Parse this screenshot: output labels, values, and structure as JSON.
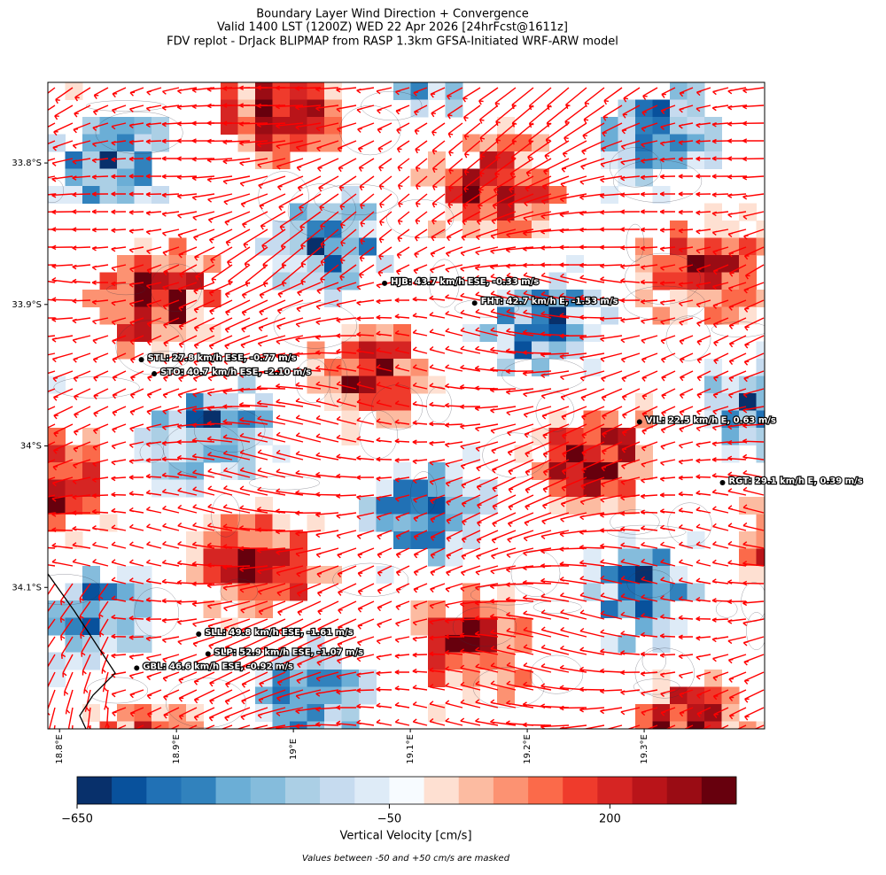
{
  "header": {
    "title_lines": [
      "Boundary Layer Wind Direction + Convergence",
      "Valid 1400 LST (1200Z) WED 22 Apr 2026 [24hrFcst@1611z]",
      "FDV replot - DrJack BLIPMAP from RASP 1.3km GFSA-Initiated WRF-ARW model"
    ]
  },
  "map": {
    "xlim": [
      18.79,
      19.403
    ],
    "ylim": [
      -34.2,
      -33.743
    ],
    "xticks": [
      {
        "value": 18.8,
        "label": "18.8°E"
      },
      {
        "value": 18.9,
        "label": "18.9°E"
      },
      {
        "value": 19.0,
        "label": "19°E"
      },
      {
        "value": 19.1,
        "label": "19.1°E"
      },
      {
        "value": 19.2,
        "label": "19.2°E"
      },
      {
        "value": 19.3,
        "label": "19.3°E"
      }
    ],
    "yticks": [
      {
        "value": -33.8,
        "label": "33.8°S"
      },
      {
        "value": -33.9,
        "label": "33.9°S"
      },
      {
        "value": -34.0,
        "label": "34°S"
      },
      {
        "value": -34.1,
        "label": "34.1°S"
      }
    ],
    "stations": [
      {
        "label": "HJB: 43.7 km/h ESE, -0.33 m/s",
        "lon": 19.078,
        "lat": -33.885
      },
      {
        "label": "FHT: 42.7 km/h E, -1.53 m/s",
        "lon": 19.155,
        "lat": -33.899
      },
      {
        "label": "STL: 27.8 km/h ESE, -0.77 m/s",
        "lon": 18.87,
        "lat": -33.939
      },
      {
        "label": "STO: 40.7 km/h ESE, -2.10 m/s",
        "lon": 18.881,
        "lat": -33.949
      },
      {
        "label": "VIL: 22.5 km/h E, 0.63 m/s",
        "lon": 19.296,
        "lat": -33.983
      },
      {
        "label": "RGT: 29.1 km/h E, 0.39 m/s",
        "lon": 19.367,
        "lat": -34.026
      },
      {
        "label": "SLL: 49.8 km/h ESE, -1.61 m/s",
        "lon": 18.919,
        "lat": -34.133
      },
      {
        "label": "SLP: 52.9 km/h ESE, -1.07 m/s",
        "lon": 18.927,
        "lat": -34.147
      },
      {
        "label": "GBL: 46.6 km/h ESE, -0.92 m/s",
        "lon": 18.866,
        "lat": -34.157
      }
    ]
  },
  "colorbar": {
    "colors": [
      "#08306b",
      "#08519c",
      "#2171b5",
      "#3182bd",
      "#6baed6",
      "#85bcdc",
      "#abcfe5",
      "#c6dbef",
      "#deebf7",
      "#f7fbff",
      "#fee0d2",
      "#fcbba1",
      "#fc9272",
      "#fb6a4a",
      "#ef3b2c",
      "#d62523",
      "#b91419",
      "#9a0c14",
      "#67000d"
    ],
    "bounds": [
      -650,
      -583,
      -517,
      -450,
      -383,
      -317,
      -250,
      -183,
      -117,
      -50,
      50,
      78,
      106,
      134,
      162,
      190,
      218,
      246,
      274,
      302
    ],
    "ticks": [
      {
        "value": -650,
        "label": "−650"
      },
      {
        "value": -50,
        "label": "−50"
      },
      {
        "value": 200,
        "label": "200"
      }
    ],
    "label": "Vertical Velocity [cm/s]"
  },
  "note": "Values between -50 and +50 cm/s are masked"
}
